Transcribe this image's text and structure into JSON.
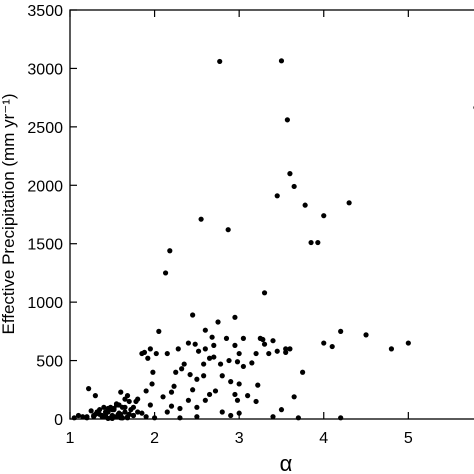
{
  "chart_data": {
    "type": "scatter",
    "title": "",
    "xlabel": "α",
    "ylabel": "Effective Precipitation (mm yr⁻¹)",
    "xlim": [
      1,
      5.8
    ],
    "ylim": [
      0,
      3500
    ],
    "xticks": [
      1,
      2,
      3,
      4,
      5
    ],
    "yticks": [
      0,
      500,
      1000,
      1500,
      2000,
      2500,
      3000,
      3500
    ],
    "grid": false,
    "marker_color": "#000000",
    "series": [
      {
        "x": [
          2.77,
          3.5,
          3.57,
          5.8,
          3.6,
          3.45,
          2.55,
          3.65,
          4.3,
          3.78,
          4.0,
          3.85,
          3.93,
          2.87,
          2.18,
          3.3,
          2.13,
          2.45,
          2.6,
          2.95,
          2.75,
          2.05,
          4.5,
          3.28,
          2.68,
          3.25,
          2.85,
          3.05,
          2.4,
          3.4,
          2.95,
          2.28,
          1.95,
          4.0,
          4.2,
          3.3,
          3.6,
          3.55,
          4.1,
          4.8,
          5.0,
          3.75,
          2.48,
          2.7,
          2.6,
          2.52,
          3.45,
          3.55,
          3.35,
          3.2,
          3.0,
          2.15,
          1.88,
          1.92,
          1.85,
          2.02,
          2.35,
          2.7,
          2.65,
          2.88,
          2.98,
          3.15,
          2.58,
          2.78,
          3.05,
          2.32,
          1.98,
          2.25,
          2.42,
          2.58,
          2.8,
          2.5,
          2.9,
          3.0,
          3.22,
          1.97,
          2.23,
          2.45,
          2.72,
          2.2,
          1.9,
          2.65,
          2.95,
          3.1,
          3.65,
          2.1,
          1.8,
          1.7,
          2.4,
          2.6,
          2.98,
          3.2,
          2.2,
          2.3,
          1.75,
          1.95,
          2.5,
          2.8,
          3.5,
          2.15,
          1.55,
          1.62,
          1.4,
          1.5,
          1.45,
          1.57,
          1.52,
          1.65,
          1.42,
          1.35,
          1.7,
          1.28,
          1.68,
          1.6,
          1.2,
          1.32,
          1.78,
          1.48,
          1.55,
          1.25,
          1.58,
          1.4,
          1.72,
          1.62,
          1.5,
          1.38,
          1.3,
          1.45,
          1.85,
          1.68,
          1.52,
          1.75,
          1.22,
          1.6,
          1.58,
          1.65,
          1.15,
          1.48,
          1.42,
          1.35,
          1.7,
          1.55,
          1.5,
          1.28,
          1.62,
          1.8,
          1.45,
          1.1,
          1.05,
          1.2,
          1.38,
          1.52,
          1.6,
          1.68,
          1.75,
          1.9,
          2.0,
          1.65,
          1.3,
          2.3,
          2.5,
          2.9,
          3.0,
          3.4,
          3.7,
          4.2
        ],
        "y": [
          3060,
          3065,
          2560,
          2665,
          2100,
          1910,
          1710,
          1990,
          1850,
          1830,
          1740,
          1510,
          1510,
          1620,
          1440,
          1080,
          1250,
          890,
          760,
          870,
          830,
          750,
          720,
          680,
          700,
          690,
          690,
          690,
          650,
          670,
          630,
          600,
          600,
          650,
          750,
          640,
          600,
          600,
          620,
          600,
          650,
          400,
          640,
          630,
          600,
          580,
          580,
          570,
          560,
          560,
          560,
          560,
          570,
          520,
          560,
          560,
          470,
          530,
          520,
          500,
          490,
          480,
          470,
          470,
          450,
          430,
          400,
          400,
          380,
          370,
          370,
          340,
          320,
          300,
          290,
          300,
          280,
          250,
          240,
          230,
          240,
          210,
          210,
          200,
          190,
          190,
          170,
          150,
          160,
          160,
          160,
          150,
          110,
          90,
          100,
          120,
          100,
          60,
          80,
          60,
          120,
          100,
          100,
          80,
          60,
          40,
          80,
          60,
          30,
          40,
          40,
          20,
          200,
          230,
          10,
          60,
          150,
          100,
          20,
          70,
          50,
          20,
          80,
          10,
          30,
          20,
          40,
          5,
          50,
          20,
          90,
          30,
          260,
          10,
          120,
          170,
          20,
          10,
          60,
          80,
          40,
          130,
          5,
          30,
          10,
          60,
          90,
          30,
          10,
          20,
          30,
          20,
          40,
          10,
          30,
          20,
          10,
          100,
          200,
          10,
          20,
          30,
          50,
          20,
          10,
          10
        ]
      }
    ]
  }
}
